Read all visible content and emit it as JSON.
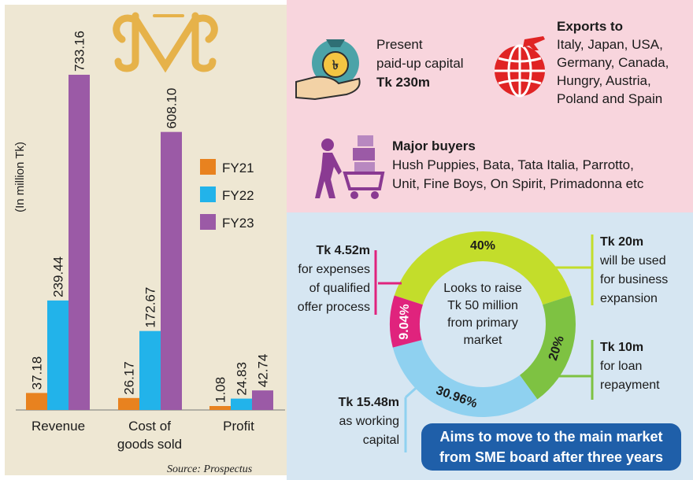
{
  "chart_data": {
    "type": "bar",
    "categories": [
      "Revenue",
      "Cost of goods sold",
      "Profit"
    ],
    "category_lines": [
      [
        "Revenue"
      ],
      [
        "Cost of",
        "goods sold"
      ],
      [
        "Profit"
      ]
    ],
    "series": [
      {
        "name": "FY21",
        "values": [
          37.18,
          26.17,
          1.08
        ],
        "labels": [
          "37.18",
          "26.17",
          "1.08"
        ],
        "color": "#e8821f"
      },
      {
        "name": "FY22",
        "values": [
          239.44,
          172.67,
          24.83
        ],
        "labels": [
          "239.44",
          "172.67",
          "24.83"
        ],
        "color": "#22b3ea"
      },
      {
        "name": "FY23",
        "values": [
          733.16,
          608.1,
          42.74
        ],
        "labels": [
          "733.16",
          "608.10",
          "42.74"
        ],
        "color": "#9b5aa6"
      }
    ],
    "ylabel": "(In million Tk)",
    "ylim": [
      0,
      733.16
    ],
    "legend": "right",
    "source": "Source: Prospectus"
  },
  "capital": {
    "line1": "Present",
    "line2": "paid-up capital",
    "value": "Tk 230m"
  },
  "exports": {
    "title": "Exports to",
    "lines": [
      "Italy, Japan, USA,",
      "Germany, Canada,",
      "Hungry, Austria,",
      "Poland and Spain"
    ]
  },
  "buyers": {
    "title": "Major buyers",
    "lines": [
      "Hush Puppies, Bata, Tata Italia, Parrotto,",
      "Unit, Fine Boys, On Spirit, Primadonna etc"
    ]
  },
  "donut": {
    "center_lines": [
      "Looks to raise",
      "Tk 50 million",
      "from primary",
      "market"
    ],
    "segments": [
      {
        "pct": 40,
        "label": "40%",
        "color": "#c3dd2b"
      },
      {
        "pct": 20,
        "label": "20%",
        "color": "#7ec242"
      },
      {
        "pct": 30.96,
        "label": "30.96%",
        "color": "#8fd1f0"
      },
      {
        "pct": 9.04,
        "label": "9.04%",
        "color": "#e0237d"
      }
    ]
  },
  "callouts": {
    "expenses": {
      "amount": "Tk 4.52m",
      "lines": [
        "for expenses",
        "of qualified",
        "offer process"
      ]
    },
    "expansion": {
      "amount": "Tk 20m",
      "lines": [
        "will be used",
        "for business",
        "expansion"
      ]
    },
    "loan": {
      "amount": "Tk 10m",
      "lines": [
        "for loan",
        "repayment"
      ]
    },
    "working": {
      "amount": "Tk 15.48m",
      "lines": [
        "as working",
        "capital"
      ]
    }
  },
  "banner": {
    "line1": "Aims to move to the main market",
    "line2": "from SME board after three years"
  }
}
